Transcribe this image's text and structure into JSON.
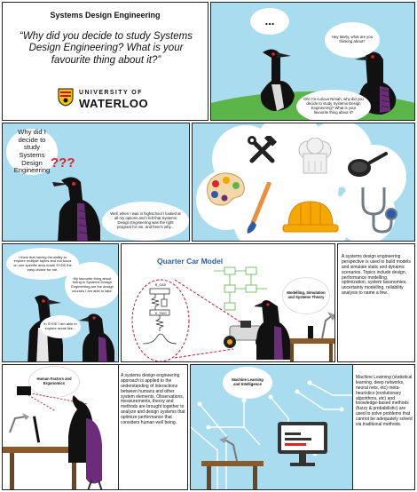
{
  "header": {
    "title": "Systems Design Engineering",
    "question": "“Why did you decide to study Systems Design Engineering? What is your favourite thing about it?”",
    "university_line1": "UNIVERSITY OF",
    "university_line2": "WATERLOO"
  },
  "panel1": {
    "thought": "...",
    "bubble_right": "Hey Marty, what are you thinking about?",
    "bubble_left": "Oh! I’m curious Nimah, why did you decide to study Systems Design Engineering? What is your favourite thing about it?"
  },
  "panel2": {
    "question_bubble": "Why did I decide to study Systems Design Engineering",
    "question_marks": "???",
    "answer_bubble": "Well, when I was in highschool I looked at all my options and I felt that Systems Design Engineering was the right program for me, and here’s why..."
  },
  "panel3": {
    "bubble1": "I think that having the ability to explore multiple topics and not focus on one specific area made SYDE the easy choice for me.",
    "bubble2": "My favourite thing about being in Systems Design Engineering are the design courses I am able to take.",
    "bubble3": "In SYDE I am able to explore areas like..."
  },
  "panel4": {
    "chart_title": "Quarter Car Model",
    "bubble": "Modelling, Simulation and Systems Theory",
    "box_labels": [
      "B_GAS",
      "K_TWO"
    ],
    "description": "A systems design engineering perspective is used to build models and simulate static and dynamic scenarios. Topics include design, performance modelling, optimization, system taxonomies, uncertainty modelling, reliability analysis to name a few."
  },
  "panel5": {
    "bubble": "Human Factors and Ergonomics",
    "description": "A systems design engineering approach is applied to the understanding of interactions between humans and other system elements. Observations, measurements, theory and methods are brought together to analyze and design systems that optimize performance that considers human well being."
  },
  "panel6": {
    "bubble": "Machine Learning and Intelligence",
    "description": "Machine Learning (statistical learning, deep networks, neural nets, etc) meta-heuristics (evolutionary algorithms, etc) and knowledge-based methods (fuzzy & probabilistic) are used to solve problems that cannot be adequately solved via traditional methods."
  },
  "colors": {
    "sky": "#a9dcef",
    "grass": "#5bb548",
    "loon_black": "#111111",
    "question_red": "#e0232b",
    "wheel_gold": "#f5a800",
    "chart_title_blue": "#2b5cab"
  },
  "icons": [
    "tools-icon",
    "chef-hat-icon",
    "frying-pan-icon",
    "palette-icon",
    "paintbrush-icon",
    "hard-hat-icon",
    "stethoscope-icon",
    "university-crest-icon",
    "robot-car-icon",
    "desk-lamp-icon",
    "computer-icon",
    "brain-circuit-icon"
  ]
}
